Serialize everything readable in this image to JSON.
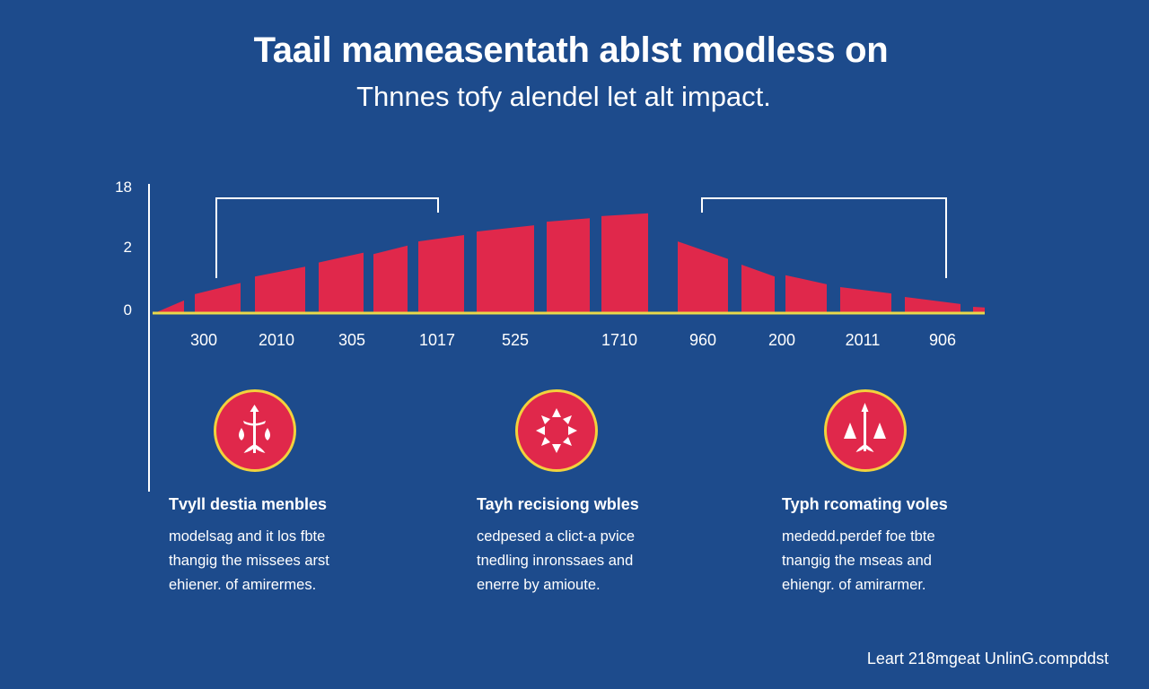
{
  "header": {
    "title": "Taail mameasentath ablst modless on",
    "subtitle": "Thnnes tofy alendel let alt impact."
  },
  "chart_data": {
    "type": "bar",
    "title": "Taail mameasentath ablst modless on",
    "y_tick_labels": [
      "18",
      "2",
      "0"
    ],
    "ylim": [
      0,
      18
    ],
    "x_tick_labels": [
      "300",
      "2010",
      "305",
      "1017",
      "525",
      "1710",
      "960",
      "200",
      "2011",
      "906"
    ],
    "series": [
      {
        "name": "bars",
        "color": "#e0284b",
        "start_values": [
          0,
          2.7,
          5.2,
          7.2,
          8.4,
          10.2,
          11.6,
          13.0,
          13.8,
          10.2,
          6.9,
          5.4,
          3.7,
          2.3,
          0.9
        ],
        "end_values": [
          1.8,
          4.3,
          6.6,
          8.6,
          9.6,
          11.1,
          12.5,
          13.5,
          14.2,
          7.7,
          5.2,
          4.1,
          2.8,
          1.3,
          0.8
        ]
      }
    ],
    "baseline_color": "#e9d84a",
    "grid": false,
    "legend": "none"
  },
  "features": [
    {
      "icon": "scales-icon",
      "heading": "Tvyll destia menbles",
      "lines": [
        "modelsag and it los fbte",
        "thangig the missees arst",
        "ehiener. of amirermes."
      ]
    },
    {
      "icon": "burst-icon",
      "heading": "Tayh recisiong wbles",
      "lines": [
        "cedpesed a clict-a pvice",
        "tnedling inronssaes and",
        "enerre by amioute."
      ]
    },
    {
      "icon": "arrows-icon",
      "heading": "Typh rcomating voles",
      "lines": [
        "mededd.perdef foe tbte",
        "tnangig the mseas and",
        "ehiengr. of amirarmer."
      ]
    }
  ],
  "footer": {
    "text": "Leart 218mgeat UnlinG.compddst"
  }
}
